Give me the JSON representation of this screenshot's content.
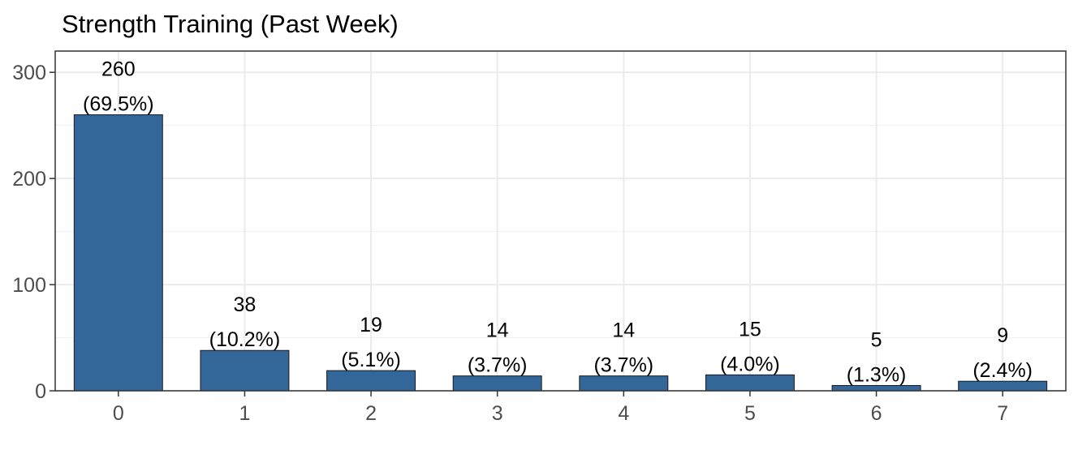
{
  "chart_data": {
    "type": "bar",
    "title": "Strength Training (Past Week)",
    "xlabel": "",
    "ylabel": "",
    "categories": [
      "0",
      "1",
      "2",
      "3",
      "4",
      "5",
      "6",
      "7"
    ],
    "values": [
      260,
      38,
      19,
      14,
      14,
      15,
      5,
      9
    ],
    "percent_labels": [
      "(69.5%)",
      "(10.2%)",
      "(5.1%)",
      "(3.7%)",
      "(3.7%)",
      "(4.0%)",
      "(1.3%)",
      "(2.4%)"
    ],
    "ylim": [
      0,
      320
    ],
    "y_ticks": [
      0,
      100,
      200,
      300
    ],
    "grid": true,
    "legend": "none",
    "colors": {
      "bar_fill": "#336699",
      "bar_stroke": "#1a1a1a",
      "grid_major": "#ebebeb",
      "grid_minor": "#f2f2f2",
      "panel_border": "#333333"
    }
  }
}
